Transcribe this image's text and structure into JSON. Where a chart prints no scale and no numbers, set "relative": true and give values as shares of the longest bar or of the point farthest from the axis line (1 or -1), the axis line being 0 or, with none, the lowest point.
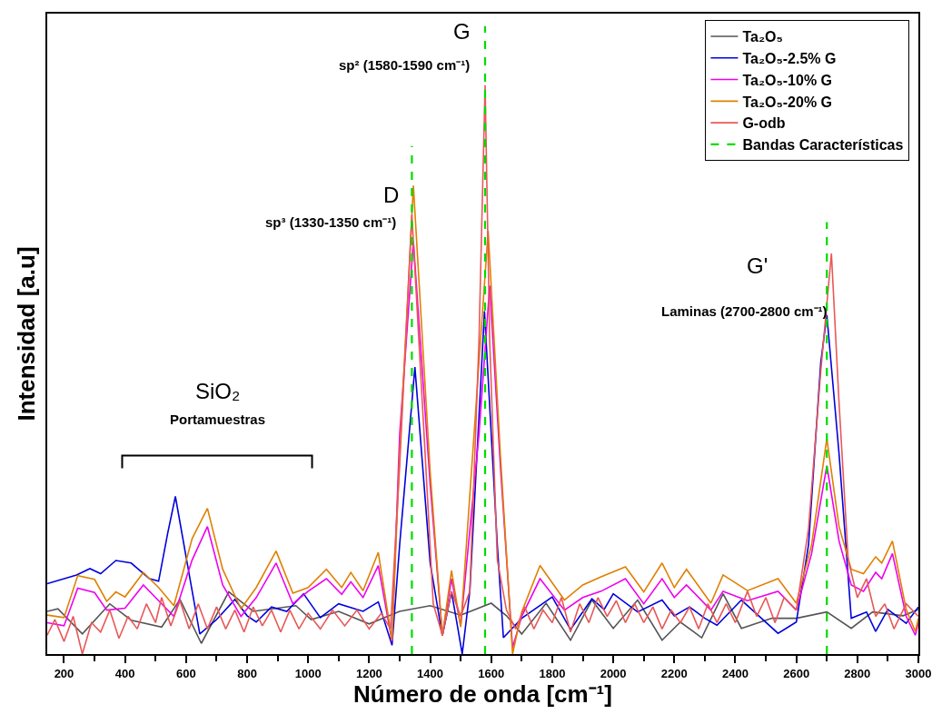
{
  "chart_data": {
    "type": "line",
    "relative": true,
    "xlabel": "Número de onda [cm⁻¹]",
    "ylabel": "Intensidad [a.u]",
    "xlim": [
      145,
      3000
    ],
    "xticks": [
      200,
      400,
      600,
      800,
      1000,
      1200,
      1400,
      1600,
      1800,
      2000,
      2200,
      2400,
      2600,
      2800,
      3000
    ],
    "legend": "top right",
    "series": [
      {
        "name": "Ta₂O₅",
        "color": "#555555",
        "x": [
          145,
          180,
          260,
          350,
          420,
          520,
          580,
          650,
          740,
          820,
          960,
          1010,
          1100,
          1200,
          1300,
          1400,
          1500,
          1600,
          1650,
          1700,
          1780,
          1860,
          1930,
          2000,
          2080,
          2160,
          2220,
          2290,
          2360,
          2420,
          2520,
          2600,
          2700,
          2780,
          2850,
          2950,
          3000
        ],
        "values": [
          0.068,
          0.072,
          0.032,
          0.08,
          0.054,
          0.043,
          0.087,
          0.017,
          0.099,
          0.068,
          0.077,
          0.055,
          0.068,
          0.048,
          0.068,
          0.077,
          0.062,
          0.081,
          0.061,
          0.032,
          0.081,
          0.022,
          0.086,
          0.041,
          0.086,
          0.022,
          0.051,
          0.026,
          0.096,
          0.041,
          0.057,
          0.057,
          0.067,
          0.041,
          0.067,
          0.061,
          0.071
        ]
      },
      {
        "name": "Ta₂O₅-2.5% G",
        "color": "#0000dd",
        "x": [
          145,
          241,
          285,
          320,
          370,
          420,
          480,
          510,
          540,
          565,
          600,
          645,
          700,
          760,
          800,
          830,
          880,
          930,
          985,
          1040,
          1100,
          1180,
          1230,
          1275,
          1300,
          1350,
          1400,
          1440,
          1470,
          1490,
          1505,
          1530,
          1578,
          1620,
          1640,
          1700,
          1800,
          1860,
          1930,
          1970,
          2000,
          2080,
          2160,
          2200,
          2250,
          2300,
          2340,
          2420,
          2540,
          2600,
          2640,
          2680,
          2700,
          2740,
          2780,
          2830,
          2860,
          2900,
          2960,
          3000
        ],
        "values": [
          0.112,
          0.126,
          0.136,
          0.128,
          0.149,
          0.145,
          0.12,
          0.116,
          0.193,
          0.251,
          0.155,
          0.032,
          0.055,
          0.087,
          0.061,
          0.051,
          0.075,
          0.068,
          0.096,
          0.058,
          0.08,
          0.068,
          0.083,
          0.014,
          0.174,
          0.457,
          0.145,
          0.029,
          0.099,
          0.043,
          0.0,
          0.101,
          0.546,
          0.174,
          0.026,
          0.057,
          0.091,
          0.039,
          0.088,
          0.071,
          0.096,
          0.067,
          0.086,
          0.061,
          0.075,
          0.057,
          0.046,
          0.086,
          0.033,
          0.051,
          0.174,
          0.464,
          0.54,
          0.319,
          0.057,
          0.067,
          0.036,
          0.071,
          0.049,
          0.075
        ]
      },
      {
        "name": "Ta₂O₅-10% G",
        "color": "#ee00ee",
        "x": [
          145,
          200,
          245,
          300,
          340,
          400,
          460,
          510,
          560,
          620,
          670,
          720,
          780,
          830,
          895,
          950,
          1000,
          1060,
          1110,
          1140,
          1180,
          1230,
          1275,
          1300,
          1345,
          1400,
          1440,
          1470,
          1500,
          1560,
          1595,
          1630,
          1670,
          1700,
          1760,
          1840,
          1900,
          1960,
          2040,
          2100,
          2160,
          2200,
          2240,
          2320,
          2360,
          2440,
          2540,
          2600,
          2650,
          2700,
          2740,
          2780,
          2820,
          2860,
          2880,
          2915,
          2960,
          2990,
          3000
        ],
        "values": [
          0.05,
          0.045,
          0.105,
          0.098,
          0.07,
          0.073,
          0.11,
          0.085,
          0.06,
          0.15,
          0.203,
          0.11,
          0.06,
          0.09,
          0.145,
          0.08,
          0.1,
          0.12,
          0.095,
          0.115,
          0.09,
          0.141,
          0.02,
          0.35,
          0.657,
          0.27,
          0.03,
          0.12,
          0.045,
          0.35,
          0.587,
          0.3,
          0.01,
          0.06,
          0.12,
          0.07,
          0.09,
          0.1,
          0.12,
          0.08,
          0.12,
          0.09,
          0.11,
          0.07,
          0.1,
          0.085,
          0.1,
          0.07,
          0.16,
          0.3,
          0.18,
          0.11,
          0.1,
          0.13,
          0.12,
          0.16,
          0.06,
          0.03,
          0.05
        ]
      },
      {
        "name": "Ta₂O₅-20% G",
        "color": "#e08000",
        "x": [
          145,
          200,
          245,
          300,
          340,
          370,
          400,
          460,
          510,
          560,
          620,
          670,
          720,
          780,
          830,
          895,
          950,
          1000,
          1060,
          1110,
          1140,
          1180,
          1230,
          1275,
          1300,
          1345,
          1400,
          1440,
          1470,
          1500,
          1560,
          1590,
          1630,
          1670,
          1700,
          1760,
          1840,
          1900,
          1960,
          2040,
          2100,
          2160,
          2200,
          2240,
          2320,
          2360,
          2440,
          2540,
          2600,
          2650,
          2700,
          2740,
          2780,
          2820,
          2860,
          2880,
          2915,
          2960,
          2990,
          3000
        ],
        "values": [
          0.062,
          0.058,
          0.125,
          0.119,
          0.084,
          0.099,
          0.091,
          0.13,
          0.106,
          0.077,
          0.184,
          0.232,
          0.135,
          0.072,
          0.106,
          0.164,
          0.097,
          0.106,
          0.135,
          0.106,
          0.13,
          0.101,
          0.162,
          0.022,
          0.319,
          0.746,
          0.29,
          0.029,
          0.133,
          0.043,
          0.464,
          0.674,
          0.319,
          0.0,
          0.067,
          0.141,
          0.086,
          0.11,
          0.123,
          0.139,
          0.099,
          0.145,
          0.106,
          0.135,
          0.081,
          0.126,
          0.101,
          0.12,
          0.081,
          0.174,
          0.343,
          0.203,
          0.135,
          0.128,
          0.155,
          0.145,
          0.18,
          0.071,
          0.036,
          0.057
        ]
      },
      {
        "name": "G-odb",
        "color": "#e85858",
        "x": [
          145,
          170,
          200,
          230,
          260,
          290,
          320,
          350,
          380,
          410,
          440,
          470,
          500,
          520,
          550,
          580,
          610,
          640,
          670,
          700,
          730,
          760,
          790,
          820,
          850,
          880,
          910,
          940,
          970,
          1000,
          1040,
          1080,
          1120,
          1160,
          1200,
          1240,
          1270,
          1300,
          1340,
          1380,
          1410,
          1440,
          1470,
          1500,
          1530,
          1560,
          1580,
          1595,
          1620,
          1650,
          1680,
          1710,
          1740,
          1770,
          1800,
          1830,
          1860,
          1890,
          1920,
          1950,
          1980,
          2010,
          2040,
          2070,
          2100,
          2130,
          2160,
          2190,
          2220,
          2250,
          2280,
          2310,
          2340,
          2370,
          2400,
          2440,
          2470,
          2500,
          2530,
          2560,
          2600,
          2640,
          2680,
          2715,
          2740,
          2770,
          2800,
          2830,
          2860,
          2890,
          2920,
          2960,
          3000
        ],
        "values": [
          0.03,
          0.055,
          0.02,
          0.06,
          0.0,
          0.05,
          0.035,
          0.07,
          0.025,
          0.06,
          0.04,
          0.08,
          0.05,
          0.09,
          0.045,
          0.085,
          0.04,
          0.08,
          0.04,
          0.075,
          0.04,
          0.07,
          0.035,
          0.075,
          0.045,
          0.07,
          0.035,
          0.07,
          0.04,
          0.065,
          0.04,
          0.07,
          0.045,
          0.07,
          0.04,
          0.065,
          0.04,
          0.3,
          0.7,
          0.35,
          0.08,
          0.03,
          0.1,
          0.06,
          0.1,
          0.5,
          0.906,
          0.5,
          0.15,
          0.07,
          0.04,
          0.075,
          0.04,
          0.07,
          0.05,
          0.09,
          0.035,
          0.08,
          0.05,
          0.09,
          0.06,
          0.085,
          0.05,
          0.08,
          0.05,
          0.075,
          0.04,
          0.07,
          0.05,
          0.075,
          0.04,
          0.08,
          0.05,
          0.08,
          0.05,
          0.1,
          0.06,
          0.09,
          0.05,
          0.09,
          0.07,
          0.2,
          0.45,
          0.638,
          0.4,
          0.15,
          0.09,
          0.12,
          0.06,
          0.08,
          0.04,
          0.08,
          0.06
        ]
      },
      {
        "name": "Bandas Características",
        "color": "#00dd00",
        "line_style": "dashed",
        "x": [
          1340,
          1340,
          null,
          1580,
          1580,
          null,
          2700,
          2700
        ],
        "values": [
          0,
          0.809,
          null,
          0,
          1,
          null,
          0,
          0.688
        ]
      }
    ],
    "annotations": [
      "G",
      "sp² (1580-1590 cm⁻¹)",
      "D",
      "sp³ (1330-1350 cm⁻¹)",
      "G'",
      "Laminas (2700-2800 cm⁻¹)",
      "SiO₂",
      "Portamuestras"
    ]
  }
}
